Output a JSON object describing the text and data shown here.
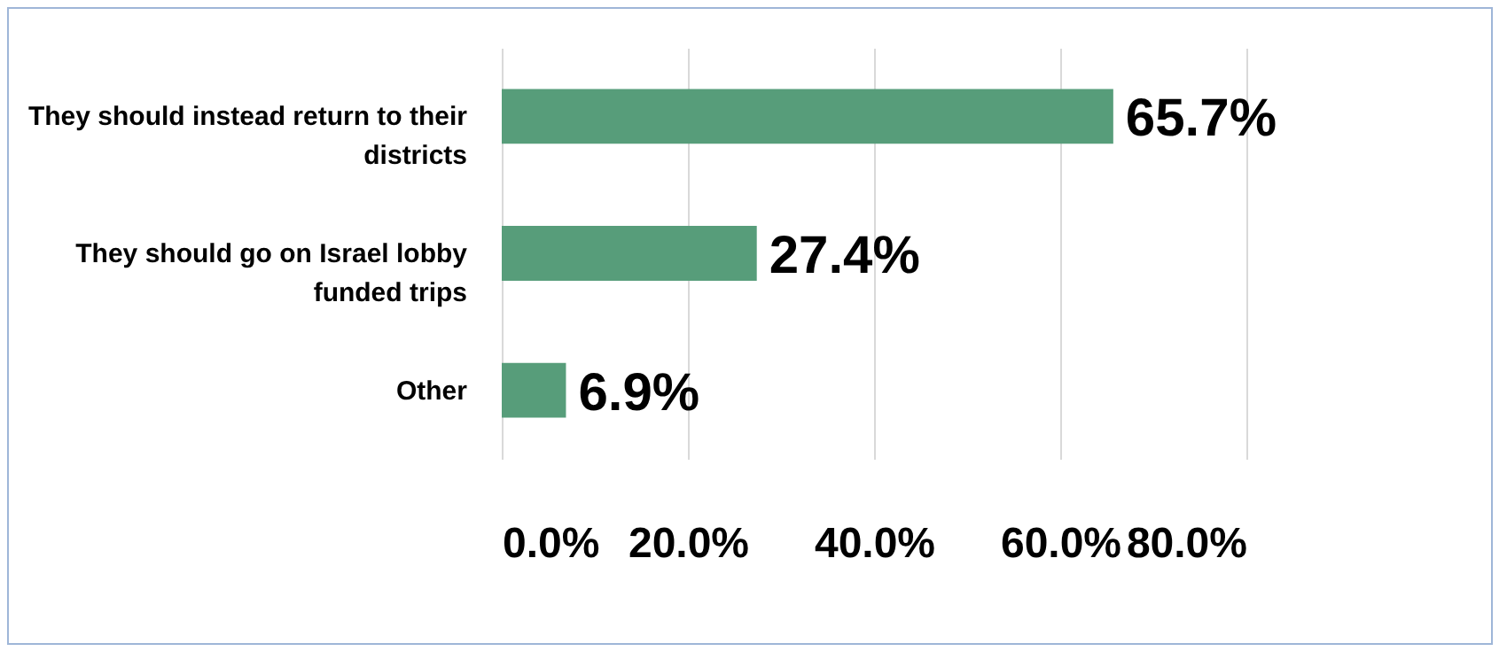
{
  "chart_data": {
    "type": "bar",
    "orientation": "horizontal",
    "categories": [
      "They should instead return to their districts",
      "They should go on Israel lobby funded trips",
      "Other"
    ],
    "values": [
      65.7,
      27.4,
      6.9
    ],
    "value_labels": [
      "65.7%",
      "27.4%",
      "6.9%"
    ],
    "color": "#579d7a",
    "xlim": [
      0,
      80
    ],
    "xticks": [
      {
        "value": 0,
        "label": "0.0%"
      },
      {
        "value": 20,
        "label": "20.0%"
      },
      {
        "value": 40,
        "label": "40.0%"
      },
      {
        "value": 60,
        "label": "60.0%"
      },
      {
        "value": 80,
        "label": "80.0%"
      }
    ],
    "grid": "x"
  }
}
